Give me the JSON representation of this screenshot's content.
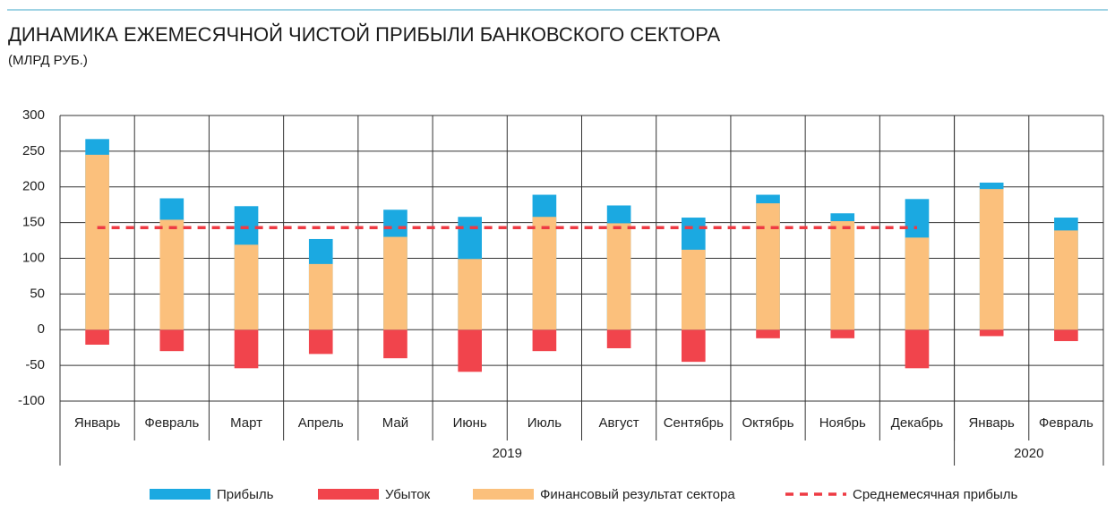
{
  "chart_data": {
    "type": "bar",
    "title": "ДИНАМИКА ЕЖЕМЕСЯЧНОЙ ЧИСТОЙ ПРИБЫЛИ БАНКОВСКОГО СЕКТОРА",
    "subtitle": "(МЛРД РУБ.)",
    "categories": [
      "Январь",
      "Февраль",
      "Март",
      "Апрель",
      "Май",
      "Июнь",
      "Июль",
      "Август",
      "Сентябрь",
      "Октябрь",
      "Ноябрь",
      "Декабрь",
      "Январь",
      "Февраль"
    ],
    "x_groups": [
      {
        "label": "2019",
        "size": 12
      },
      {
        "label": "2020",
        "size": 2
      }
    ],
    "series": [
      {
        "name": "Прибыль",
        "color": "#1ba9e1",
        "values": [
          267,
          184,
          173,
          127,
          168,
          158,
          189,
          174,
          157,
          189,
          163,
          183,
          206,
          157
        ]
      },
      {
        "name": "Убыток",
        "color": "#f1444c",
        "values": [
          -21,
          -30,
          -54,
          -34,
          -40,
          -59,
          -30,
          -26,
          -45,
          -12,
          -12,
          -54,
          -9,
          -16
        ]
      },
      {
        "name": "Финансовый результат сектора",
        "color": "#fbc07c",
        "values": [
          245,
          154,
          119,
          92,
          130,
          99,
          158,
          149,
          112,
          177,
          152,
          129,
          197,
          139
        ]
      },
      {
        "name": "Среднемесячная прибыль",
        "color": "#ee3a43",
        "type": "line",
        "dashed": true,
        "values": [
          143,
          143,
          143,
          143,
          143,
          143,
          143,
          143,
          143,
          143,
          143,
          143,
          null,
          null
        ]
      }
    ],
    "ylim": [
      -100,
      300
    ],
    "yticks": [
      -100,
      -50,
      0,
      50,
      100,
      150,
      200,
      250,
      300
    ],
    "grid": true
  }
}
